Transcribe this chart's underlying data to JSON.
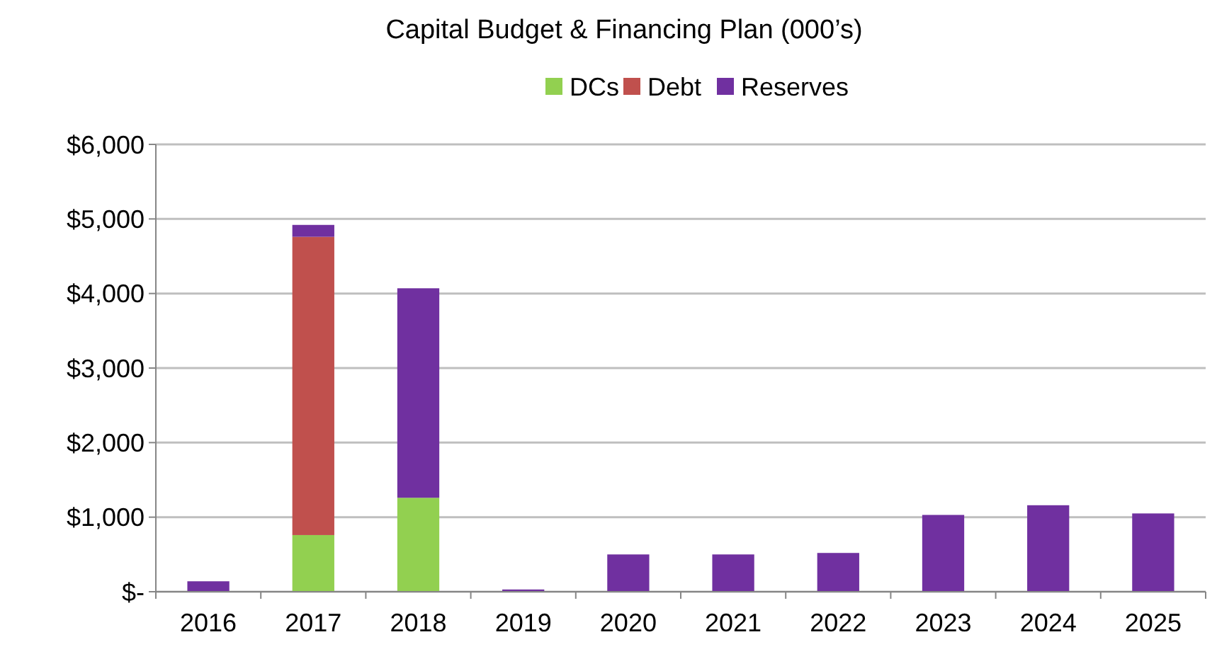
{
  "chart_data": {
    "type": "bar",
    "title": "Capital Budget & Financing Plan (000’s)",
    "stacked": true,
    "legend": "top",
    "grid": "y",
    "categories": [
      "2016",
      "2017",
      "2018",
      "2019",
      "2020",
      "2021",
      "2022",
      "2023",
      "2024",
      "2025"
    ],
    "series": [
      {
        "name": "DCs",
        "color": "#92d050",
        "values": [
          null,
          760,
          1260,
          null,
          null,
          null,
          null,
          null,
          null,
          null
        ]
      },
      {
        "name": "Debt",
        "color": "#c0504d",
        "values": [
          null,
          4000,
          null,
          null,
          null,
          null,
          null,
          null,
          null,
          null
        ]
      },
      {
        "name": "Reserves",
        "color": "#7030a0",
        "values": [
          140,
          160,
          2810,
          30,
          500,
          500,
          520,
          1030,
          1160,
          1050
        ]
      }
    ],
    "ylim": [
      0,
      6000
    ],
    "yticks": [
      {
        "value": 0,
        "label": "$-"
      },
      {
        "value": 1000,
        "label": "$1,000"
      },
      {
        "value": 2000,
        "label": "$2,000"
      },
      {
        "value": 3000,
        "label": "$3,000"
      },
      {
        "value": 4000,
        "label": "$4,000"
      },
      {
        "value": 5000,
        "label": "$5,000"
      },
      {
        "value": 6000,
        "label": "$6,000"
      }
    ]
  }
}
